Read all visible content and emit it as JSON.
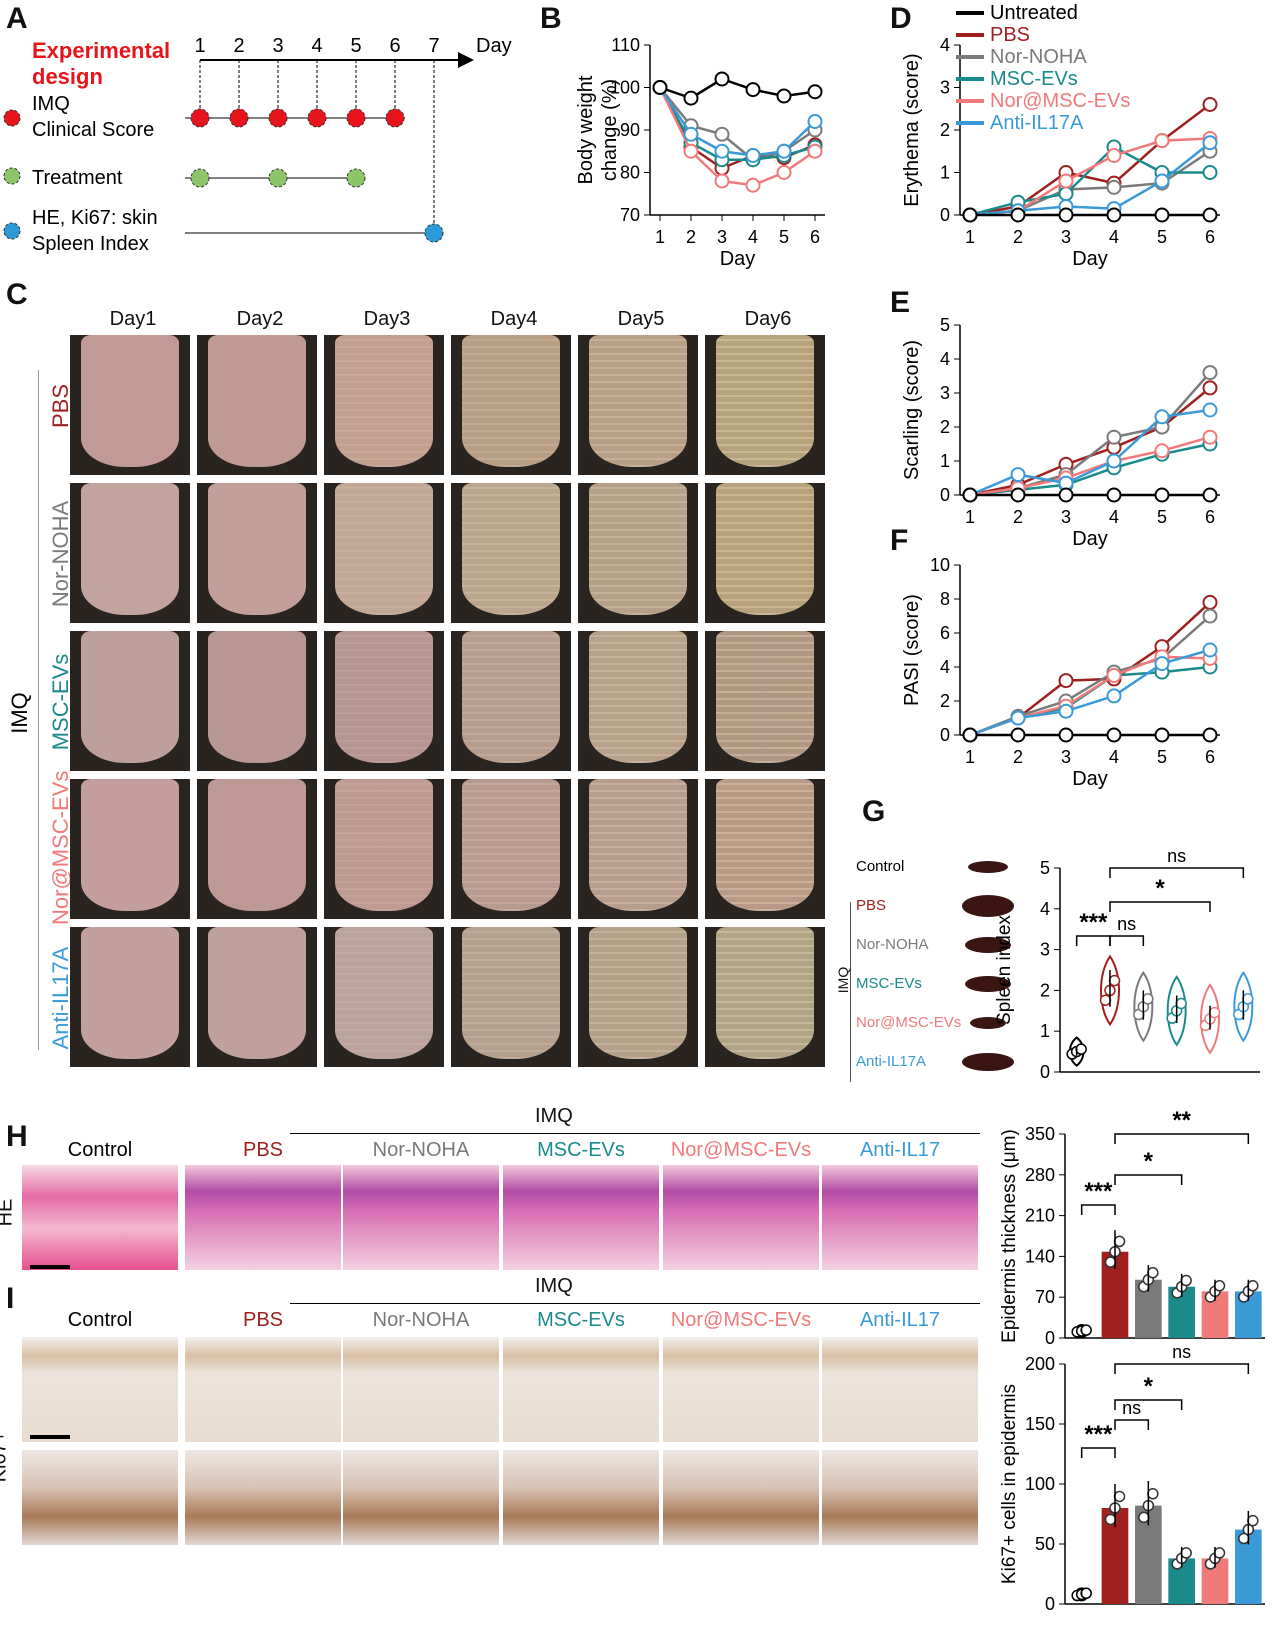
{
  "panels": {
    "A": "A",
    "B": "B",
    "C": "C",
    "D": "D",
    "E": "E",
    "F": "F",
    "G": "G",
    "H": "H",
    "I": "I"
  },
  "designA": {
    "title_line1": "Experimental",
    "title_line2": "design",
    "row1_line1": "IMQ",
    "row1_line2": "Clinical Score",
    "row2": "Treatment",
    "row3_line1": "HE, Ki67: skin",
    "row3_line2": "Spleen Index",
    "days": [
      "1",
      "2",
      "3",
      "4",
      "5",
      "6",
      "7"
    ],
    "day_label": "Day",
    "colors": {
      "imq": "#e8141b",
      "treat": "#8cc56a",
      "end": "#2a9ad8"
    }
  },
  "groups": {
    "untreated": {
      "name": "Untreated",
      "color": "#000000"
    },
    "pbs": {
      "name": "PBS",
      "color": "#a01f1f"
    },
    "nor": {
      "name": "Nor-NOHA",
      "color": "#7a7a7a"
    },
    "msc": {
      "name": "MSC-EVs",
      "color": "#1a8a8a"
    },
    "normsc": {
      "name": "Nor@MSC-EVs",
      "color": "#f07a7a"
    },
    "anti": {
      "name": "Anti-IL17A",
      "color": "#3a9ad8"
    }
  },
  "chart_data": [
    {
      "id": "B",
      "type": "line",
      "xlabel": "Day",
      "ylabel_line1": "Body weight",
      "ylabel_line2": "change (%)",
      "ylim": [
        70,
        110
      ],
      "yticks": [
        "70",
        "80",
        "90",
        "100",
        "110"
      ],
      "x": [
        1,
        2,
        3,
        4,
        5,
        6
      ],
      "xticks": [
        "1",
        "2",
        "3",
        "4",
        "5",
        "6"
      ],
      "series": [
        {
          "name": "Untreated",
          "values": [
            100,
            97.5,
            102,
            99.5,
            98,
            99
          ]
        },
        {
          "name": "PBS",
          "values": [
            100,
            86,
            81,
            84,
            83.5,
            86.5
          ]
        },
        {
          "name": "Nor-NOHA",
          "values": [
            100,
            91,
            89,
            83,
            85,
            90
          ]
        },
        {
          "name": "MSC-EVs",
          "values": [
            100,
            87,
            83,
            83,
            84,
            86
          ]
        },
        {
          "name": "Nor@MSC-EVs",
          "values": [
            100,
            85,
            78,
            77,
            80,
            85
          ]
        },
        {
          "name": "Anti-IL17A",
          "values": [
            100,
            89,
            85,
            84,
            85,
            92
          ]
        }
      ]
    },
    {
      "id": "D",
      "type": "line",
      "xlabel": "Day",
      "ylabel": "Erythema (score)",
      "ylim": [
        0,
        4
      ],
      "yticks": [
        "0",
        "1",
        "2",
        "3",
        "4"
      ],
      "x": [
        1,
        2,
        3,
        4,
        5,
        6
      ],
      "xticks": [
        "1",
        "2",
        "3",
        "4",
        "5",
        "6"
      ],
      "legend": [
        "Untreated",
        "PBS",
        "Nor-NOHA",
        "MSC-EVs",
        "Nor@MSC-EVs",
        "Anti-IL17A"
      ],
      "series": [
        {
          "name": "Untreated",
          "values": [
            0,
            0,
            0,
            0,
            0,
            0
          ]
        },
        {
          "name": "PBS",
          "values": [
            0,
            0.2,
            1,
            0.75,
            1.75,
            2.6
          ]
        },
        {
          "name": "Nor-NOHA",
          "values": [
            0,
            0.1,
            0.6,
            0.65,
            0.75,
            1.5
          ]
        },
        {
          "name": "MSC-EVs",
          "values": [
            0,
            0.3,
            0.5,
            1.6,
            1.0,
            1.0
          ]
        },
        {
          "name": "Nor@MSC-EVs",
          "values": [
            0,
            0.1,
            0.8,
            1.4,
            1.75,
            1.8
          ]
        },
        {
          "name": "Anti-IL17A",
          "values": [
            0,
            0.1,
            0.2,
            0.15,
            0.8,
            1.7
          ]
        }
      ]
    },
    {
      "id": "E",
      "type": "line",
      "xlabel": "Day",
      "ylabel": "Scarling (score)",
      "ylim": [
        0,
        5
      ],
      "yticks": [
        "0",
        "1",
        "2",
        "3",
        "4",
        "5"
      ],
      "x": [
        1,
        2,
        3,
        4,
        5,
        6
      ],
      "xticks": [
        "1",
        "2",
        "3",
        "4",
        "5",
        "6"
      ],
      "series": [
        {
          "name": "Untreated",
          "values": [
            0,
            0,
            0,
            0,
            0,
            0
          ]
        },
        {
          "name": "PBS",
          "values": [
            0,
            0.3,
            0.9,
            1.4,
            2.0,
            3.15
          ]
        },
        {
          "name": "Nor-NOHA",
          "values": [
            0,
            0.2,
            0.6,
            1.7,
            2.0,
            3.6
          ]
        },
        {
          "name": "MSC-EVs",
          "values": [
            0,
            0.15,
            0.3,
            0.8,
            1.2,
            1.5
          ]
        },
        {
          "name": "Nor@MSC-EVs",
          "values": [
            0,
            0.2,
            0.5,
            1.0,
            1.3,
            1.7
          ]
        },
        {
          "name": "Anti-IL17A",
          "values": [
            0,
            0.6,
            0.35,
            1.0,
            2.3,
            2.5
          ]
        }
      ]
    },
    {
      "id": "F",
      "type": "line",
      "xlabel": "Day",
      "ylabel": "PASI (score)",
      "ylim": [
        0,
        10
      ],
      "yticks": [
        "0",
        "2",
        "4",
        "6",
        "8",
        "10"
      ],
      "x": [
        1,
        2,
        3,
        4,
        5,
        6
      ],
      "xticks": [
        "1",
        "2",
        "3",
        "4",
        "5",
        "6"
      ],
      "series": [
        {
          "name": "Untreated",
          "values": [
            0,
            0,
            0,
            0,
            0,
            0
          ]
        },
        {
          "name": "PBS",
          "values": [
            0,
            1.0,
            3.2,
            3.3,
            5.2,
            7.8
          ]
        },
        {
          "name": "Nor-NOHA",
          "values": [
            0,
            1.1,
            2.0,
            3.7,
            4.5,
            7.0
          ]
        },
        {
          "name": "MSC-EVs",
          "values": [
            0,
            1.0,
            1.6,
            3.5,
            3.7,
            4.0
          ]
        },
        {
          "name": "Nor@MSC-EVs",
          "values": [
            0,
            1.0,
            1.7,
            3.5,
            4.6,
            4.5
          ]
        },
        {
          "name": "Anti-IL17A",
          "values": [
            0,
            1.0,
            1.4,
            2.3,
            4.2,
            5.0
          ]
        }
      ]
    },
    {
      "id": "G",
      "type": "bar",
      "ylabel": "Spleen index",
      "ylim": [
        0,
        5
      ],
      "yticks": [
        "0",
        "1",
        "2",
        "3",
        "4",
        "5"
      ],
      "categories": [
        "Control",
        "PBS",
        "Nor-NOHA",
        "MSC-EVs",
        "Nor@MSC-EVs",
        "Anti-IL17A"
      ],
      "values": [
        0.5,
        2.0,
        1.6,
        1.5,
        1.3,
        1.6
      ],
      "annotations": [
        "***",
        "ns",
        "*",
        "ns"
      ]
    },
    {
      "id": "H",
      "type": "bar",
      "ylabel": "Epidermis thickness (μm)",
      "ylim": [
        0,
        350
      ],
      "yticks": [
        "0",
        "70",
        "140",
        "210",
        "280",
        "350"
      ],
      "categories": [
        "Control",
        "PBS",
        "Nor-NOHA",
        "MSC-EVs",
        "Nor@MSC-EVs",
        "Anti-IL17"
      ],
      "values": [
        12,
        148,
        100,
        88,
        80,
        80
      ],
      "annotations": [
        "***",
        "*",
        "**"
      ]
    },
    {
      "id": "I",
      "type": "bar",
      "ylabel": "Ki67+ cells in epidermis",
      "ylim": [
        0,
        200
      ],
      "yticks": [
        "0",
        "50",
        "100",
        "150",
        "200"
      ],
      "categories": [
        "Control",
        "PBS",
        "Nor-NOHA",
        "MSC-EVs",
        "Nor@MSC-EVs",
        "Anti-IL17"
      ],
      "values": [
        8,
        80,
        82,
        38,
        38,
        62
      ],
      "annotations": [
        "***",
        "ns",
        "*",
        "ns"
      ]
    }
  ],
  "photoC": {
    "days": [
      "Day1",
      "Day2",
      "Day3",
      "Day4",
      "Day5",
      "Day6"
    ],
    "rows": [
      "PBS",
      "Nor-NOHA",
      "MSC-EVs",
      "Nor@MSC-EVs",
      "Anti-IL17A"
    ],
    "side_label": "IMQ"
  },
  "panelG": {
    "labels": [
      "Control",
      "PBS",
      "Nor-NOHA",
      "MSC-EVs",
      "Nor@MSC-EVs",
      "Anti-IL17A"
    ],
    "imq": "IMQ"
  },
  "histo": {
    "imq": "IMQ",
    "groupsH": [
      "Control",
      "PBS",
      "Nor-NOHA",
      "MSC-EVs",
      "Nor@MSC-EVs",
      "Anti-IL17"
    ],
    "groupsI": [
      "Control",
      "PBS",
      "Nor-NOHA",
      "MSC-EVs",
      "Nor@MSC-EVs",
      "Anti-IL17"
    ],
    "rowH": "HE",
    "rowI": "Ki67+"
  }
}
